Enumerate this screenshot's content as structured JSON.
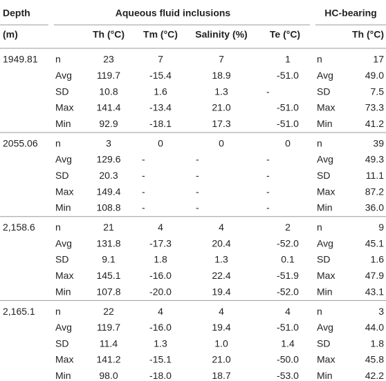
{
  "header": {
    "depth": "Depth",
    "aqueous": "Aqueous fluid inclusions",
    "hc": "HC-bearing",
    "unit": "(m)",
    "columns": [
      "Th (°C)",
      "Tm (°C)",
      "Salinity (%)",
      "Te (°C)"
    ],
    "hc_column": "Th (°C)"
  },
  "groups": [
    {
      "depth": "1949.81",
      "rows": [
        [
          "n",
          "23",
          "7",
          "7",
          "1",
          "n",
          "17"
        ],
        [
          "Avg",
          "119.7",
          "-15.4",
          "18.9",
          "-51.0",
          "Avg",
          "49.0"
        ],
        [
          "SD",
          "10.8",
          "1.6",
          "1.3",
          "-",
          "SD",
          "7.5"
        ],
        [
          "Max",
          "141.4",
          "-13.4",
          "21.0",
          "-51.0",
          "Max",
          "73.3"
        ],
        [
          "Min",
          "92.9",
          "-18.1",
          "17.3",
          "-51.0",
          "Min",
          "41.2"
        ]
      ]
    },
    {
      "depth": "2055.06",
      "rows": [
        [
          "n",
          "3",
          "0",
          "0",
          "0",
          "n",
          "39"
        ],
        [
          "Avg",
          "129.6",
          "-",
          "-",
          "-",
          "Avg",
          "49.3"
        ],
        [
          "SD",
          "20.3",
          "-",
          "-",
          "-",
          "SD",
          "11.1"
        ],
        [
          "Max",
          "149.4",
          "-",
          "-",
          "-",
          "Max",
          "87.2"
        ],
        [
          "Min",
          "108.8",
          "-",
          "-",
          "-",
          "Min",
          "36.0"
        ]
      ]
    },
    {
      "depth": "2,158.6",
      "rows": [
        [
          "n",
          "21",
          "4",
          "4",
          "2",
          "n",
          "9"
        ],
        [
          "Avg",
          "131.8",
          "-17.3",
          "20.4",
          "-52.0",
          "Avg",
          "45.1"
        ],
        [
          "SD",
          "9.1",
          "1.8",
          "1.3",
          "0.1",
          "SD",
          "1.6"
        ],
        [
          "Max",
          "145.1",
          "-16.0",
          "22.4",
          "-51.9",
          "Max",
          "47.9"
        ],
        [
          "Min",
          "107.8",
          "-20.0",
          "19.4",
          "-52.0",
          "Min",
          "43.1"
        ]
      ]
    },
    {
      "depth": "2,165.1",
      "rows": [
        [
          "n",
          "22",
          "4",
          "4",
          "4",
          "n",
          "3"
        ],
        [
          "Avg",
          "119.7",
          "-16.0",
          "19.4",
          "-51.0",
          "Avg",
          "44.0"
        ],
        [
          "SD",
          "11.4",
          "1.3",
          "1.0",
          "1.4",
          "SD",
          "1.8"
        ],
        [
          "Max",
          "141.2",
          "-15.1",
          "21.0",
          "-50.0",
          "Max",
          "45.8"
        ],
        [
          "Min",
          "98.0",
          "-18.0",
          "18.7",
          "-53.0",
          "Min",
          "42.2"
        ]
      ]
    }
  ]
}
